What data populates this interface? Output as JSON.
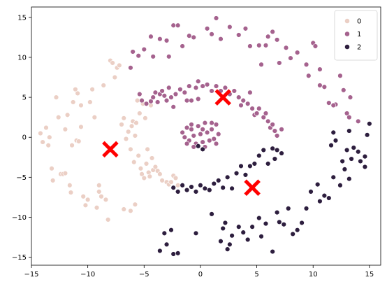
{
  "chart_data": {
    "type": "scatter",
    "title": "",
    "xlabel": "",
    "ylabel": "",
    "xlim": [
      -15,
      16
    ],
    "ylim": [
      -16,
      16.3
    ],
    "xticks": [
      -15,
      -10,
      -5,
      0,
      5,
      10,
      15
    ],
    "yticks": [
      -15,
      -10,
      -5,
      0,
      5,
      10,
      15
    ],
    "xtick_labels": [
      "−15",
      "−10",
      "−5",
      "0",
      "5",
      "10",
      "15"
    ],
    "ytick_labels": [
      "−15",
      "−10",
      "−5",
      "0",
      "5",
      "10",
      "15"
    ],
    "grid": false,
    "legend": {
      "position": "top-right",
      "entries": [
        "0",
        "1",
        "2"
      ]
    },
    "series": [
      {
        "name": "0",
        "color": "#ebcfc5",
        "points": [
          [
            -14.2,
            0.5
          ],
          [
            -14.0,
            -0.6
          ],
          [
            -13.7,
            1.2
          ],
          [
            -13.5,
            -1.0
          ],
          [
            -13.4,
            0.0
          ],
          [
            -13.2,
            -3.9
          ],
          [
            -13.1,
            -5.4
          ],
          [
            -12.8,
            5.0
          ],
          [
            -12.6,
            2.5
          ],
          [
            -12.4,
            -4.6
          ],
          [
            -12.2,
            -4.6
          ],
          [
            -12.0,
            1.0
          ],
          [
            -11.8,
            2.8
          ],
          [
            -11.6,
            -6.0
          ],
          [
            -11.5,
            -6.9
          ],
          [
            -11.3,
            4.4
          ],
          [
            -11.1,
            6.0
          ],
          [
            -11.0,
            -0.4
          ],
          [
            -10.9,
            5.5
          ],
          [
            -10.8,
            -0.5
          ],
          [
            -10.6,
            1.3
          ],
          [
            -10.4,
            -7.4
          ],
          [
            -10.2,
            -8.5
          ],
          [
            -10.0,
            -7.8
          ],
          [
            -9.8,
            4.4
          ],
          [
            -9.6,
            6.0
          ],
          [
            -9.4,
            2.5
          ],
          [
            -9.2,
            -8.8
          ],
          [
            -9.0,
            -6.8
          ],
          [
            -8.8,
            -7.4
          ],
          [
            -8.6,
            6.5
          ],
          [
            -8.4,
            -7.8
          ],
          [
            -8.2,
            -10.3
          ],
          [
            -8.0,
            9.6
          ],
          [
            -7.8,
            9.3
          ],
          [
            -7.6,
            7.5
          ],
          [
            -7.4,
            8.7
          ],
          [
            -7.2,
            9.0
          ],
          [
            -7.0,
            1.6
          ],
          [
            -6.8,
            2.4
          ],
          [
            -6.6,
            -0.2
          ],
          [
            -6.4,
            0.7
          ],
          [
            -6.2,
            -1.5
          ],
          [
            -6.1,
            1.4
          ],
          [
            -6.0,
            2.0
          ],
          [
            -5.9,
            -3.1
          ],
          [
            -5.8,
            0.2
          ],
          [
            -5.7,
            1.8
          ],
          [
            -5.6,
            4.6
          ],
          [
            -5.5,
            -2.3
          ],
          [
            -5.4,
            3.0
          ],
          [
            -5.3,
            -3.9
          ],
          [
            -5.2,
            -4.6
          ],
          [
            -5.1,
            4.2
          ],
          [
            -5.0,
            -5.1
          ],
          [
            -4.9,
            2.4
          ],
          [
            -4.8,
            -3.3
          ],
          [
            -4.7,
            -1.5
          ],
          [
            -4.6,
            -4.4
          ],
          [
            -4.5,
            -4.9
          ],
          [
            -4.4,
            4.0
          ],
          [
            -4.3,
            -2.6
          ],
          [
            -4.2,
            -4.1
          ],
          [
            -4.0,
            -3.7
          ],
          [
            -3.8,
            -4.2
          ],
          [
            -3.6,
            -4.6
          ],
          [
            -3.4,
            -5.4
          ],
          [
            -3.0,
            -5.6
          ],
          [
            -2.8,
            -5.9
          ],
          [
            -2.6,
            -5.6
          ],
          [
            -2.4,
            -4.8
          ],
          [
            -2.2,
            -5.1
          ],
          [
            -2.0,
            -6.0
          ],
          [
            -6.8,
            -9.0
          ],
          [
            -6.2,
            -9.2
          ],
          [
            -5.8,
            -8.4
          ],
          [
            -12.0,
            -4.5
          ],
          [
            -9.0,
            -6.0
          ],
          [
            -10.6,
            4.0
          ],
          [
            -11.4,
            -1.0
          ]
        ]
      },
      {
        "name": "1",
        "color": "#a5628e",
        "points": [
          [
            -6.2,
            8.7
          ],
          [
            -6.0,
            10.7
          ],
          [
            -5.5,
            10.2
          ],
          [
            -5.0,
            11.0
          ],
          [
            -4.4,
            12.6
          ],
          [
            -4.2,
            10.1
          ],
          [
            -3.6,
            12.3
          ],
          [
            -3.0,
            12.1
          ],
          [
            -2.8,
            10.1
          ],
          [
            -2.4,
            14.0
          ],
          [
            -2.0,
            14.0
          ],
          [
            -1.6,
            11.4
          ],
          [
            -1.0,
            12.7
          ],
          [
            -0.6,
            12.5
          ],
          [
            0.6,
            13.6
          ],
          [
            1.0,
            12.9
          ],
          [
            1.4,
            14.9
          ],
          [
            1.8,
            12.3
          ],
          [
            2.6,
            13.8
          ],
          [
            3.4,
            12.8
          ],
          [
            4.0,
            13.6
          ],
          [
            4.4,
            11.4
          ],
          [
            5.2,
            11.5
          ],
          [
            5.4,
            9.1
          ],
          [
            5.8,
            11.5
          ],
          [
            6.0,
            12.6
          ],
          [
            6.4,
            13.2
          ],
          [
            6.8,
            12.2
          ],
          [
            7.0,
            9.3
          ],
          [
            7.6,
            11.2
          ],
          [
            8.0,
            9.9
          ],
          [
            8.6,
            10.6
          ],
          [
            9.4,
            9.1
          ],
          [
            9.6,
            7.7
          ],
          [
            10.0,
            11.8
          ],
          [
            10.2,
            11.4
          ],
          [
            10.6,
            6.5
          ],
          [
            11.0,
            6.3
          ],
          [
            11.4,
            4.3
          ],
          [
            12.0,
            4.1
          ],
          [
            12.4,
            7.7
          ],
          [
            12.7,
            5.9
          ],
          [
            13.0,
            3.0
          ],
          [
            13.3,
            5.0
          ],
          [
            14.0,
            2.0
          ],
          [
            11.8,
            4.0
          ],
          [
            13.2,
            2.5
          ],
          [
            10.6,
            8.5
          ],
          [
            -5.2,
            4.6
          ],
          [
            -4.8,
            4.2
          ],
          [
            -4.4,
            4.5
          ],
          [
            -4.2,
            5.0
          ],
          [
            -4.0,
            5.6
          ],
          [
            -3.8,
            4.4
          ],
          [
            -3.6,
            5.4
          ],
          [
            -3.4,
            5.8
          ],
          [
            -3.2,
            5.2
          ],
          [
            -3.0,
            4.6
          ],
          [
            -2.8,
            6.2
          ],
          [
            -2.6,
            5.0
          ],
          [
            -2.4,
            3.8
          ],
          [
            -2.2,
            5.4
          ],
          [
            -1.8,
            6.0
          ],
          [
            -1.4,
            5.6
          ],
          [
            -1.2,
            4.6
          ],
          [
            -1.0,
            6.4
          ],
          [
            -0.8,
            4.6
          ],
          [
            -0.4,
            6.2
          ],
          [
            -0.2,
            7.0
          ],
          [
            0.2,
            6.4
          ],
          [
            0.6,
            6.6
          ],
          [
            1.0,
            5.8
          ],
          [
            1.4,
            6.4
          ],
          [
            1.8,
            5.8
          ],
          [
            2.2,
            6.2
          ],
          [
            2.6,
            5.4
          ],
          [
            3.0,
            5.8
          ],
          [
            3.4,
            5.0
          ],
          [
            3.6,
            4.0
          ],
          [
            3.8,
            4.6
          ],
          [
            4.2,
            4.2
          ],
          [
            4.4,
            5.6
          ],
          [
            4.6,
            3.6
          ],
          [
            4.8,
            2.8
          ],
          [
            5.0,
            3.0
          ],
          [
            5.2,
            3.6
          ],
          [
            5.6,
            2.5
          ],
          [
            5.8,
            3.0
          ],
          [
            6.0,
            2.0
          ],
          [
            6.2,
            1.2
          ],
          [
            6.4,
            1.6
          ],
          [
            6.6,
            0.8
          ],
          [
            6.8,
            0.2
          ],
          [
            7.2,
            1.0
          ],
          [
            -0.2,
            4.8
          ],
          [
            -5.4,
            5.4
          ],
          [
            -1.6,
            0.6
          ],
          [
            -1.4,
            0.0
          ],
          [
            -1.2,
            1.2
          ],
          [
            -1.0,
            -0.4
          ],
          [
            -0.8,
            1.6
          ],
          [
            -0.6,
            0.2
          ],
          [
            -0.4,
            -0.8
          ],
          [
            -0.2,
            1.4
          ],
          [
            0.0,
            0.4
          ],
          [
            0.2,
            -0.6
          ],
          [
            0.4,
            1.8
          ],
          [
            0.6,
            0.6
          ],
          [
            0.8,
            -0.4
          ],
          [
            1.0,
            1.0
          ],
          [
            1.2,
            -0.2
          ],
          [
            1.4,
            1.6
          ],
          [
            1.6,
            0.4
          ],
          [
            1.0,
            1.8
          ],
          [
            0.4,
            -1.2
          ],
          [
            -0.6,
            -1.2
          ],
          [
            0.2,
            1.0
          ],
          [
            -1.2,
            -0.8
          ],
          [
            1.4,
            -0.8
          ],
          [
            -0.8,
            1.0
          ]
        ]
      },
      {
        "name": "2",
        "color": "#2d1e3e",
        "points": [
          [
            -2.4,
            -6.3
          ],
          [
            -2.0,
            -6.8
          ],
          [
            -1.6,
            -6.0
          ],
          [
            -1.2,
            -6.6
          ],
          [
            -0.8,
            -6.2
          ],
          [
            -0.4,
            -6.8
          ],
          [
            0.0,
            -6.0
          ],
          [
            0.4,
            -6.4
          ],
          [
            0.8,
            -6.6
          ],
          [
            1.2,
            -5.8
          ],
          [
            1.6,
            -5.4
          ],
          [
            2.0,
            -6.3
          ],
          [
            2.4,
            -5.0
          ],
          [
            2.8,
            -6.4
          ],
          [
            3.2,
            -4.5
          ],
          [
            3.6,
            -3.6
          ],
          [
            4.0,
            -4.7
          ],
          [
            4.4,
            -3.6
          ],
          [
            4.8,
            -3.3
          ],
          [
            5.2,
            -2.3
          ],
          [
            5.6,
            -1.6
          ],
          [
            6.0,
            -3.3
          ],
          [
            6.4,
            -1.4
          ],
          [
            6.8,
            -1.6
          ],
          [
            7.2,
            -2.0
          ],
          [
            6.6,
            -2.7
          ],
          [
            -0.2,
            -1.1
          ],
          [
            0.2,
            -1.5
          ],
          [
            -2.4,
            -14.6
          ],
          [
            -2.0,
            -14.5
          ],
          [
            -3.6,
            -14.2
          ],
          [
            -3.2,
            -12.0
          ],
          [
            -3.0,
            -13.4
          ],
          [
            -2.6,
            -11.6
          ],
          [
            -0.4,
            -12.0
          ],
          [
            1.0,
            -9.6
          ],
          [
            1.8,
            -13.0
          ],
          [
            2.0,
            -11.4
          ],
          [
            2.2,
            -10.7
          ],
          [
            2.4,
            -14.0
          ],
          [
            2.6,
            -13.4
          ],
          [
            2.8,
            -12.3
          ],
          [
            3.4,
            -11.2
          ],
          [
            3.8,
            -11.9
          ],
          [
            4.2,
            -12.8
          ],
          [
            4.6,
            -11.2
          ],
          [
            5.2,
            -10.1
          ],
          [
            5.4,
            -12.4
          ],
          [
            5.8,
            -10.8
          ],
          [
            6.4,
            -14.3
          ],
          [
            6.8,
            -9.4
          ],
          [
            7.0,
            -10.6
          ],
          [
            7.4,
            -10.9
          ],
          [
            7.8,
            -8.9
          ],
          [
            8.2,
            -12.1
          ],
          [
            8.6,
            -11.6
          ],
          [
            9.0,
            -10.7
          ],
          [
            9.4,
            -8.9
          ],
          [
            9.8,
            -6.8
          ],
          [
            10.4,
            -5.9
          ],
          [
            10.6,
            -8.0
          ],
          [
            11.0,
            -7.3
          ],
          [
            11.4,
            -7.6
          ],
          [
            11.8,
            -5.0
          ],
          [
            12.4,
            -6.0
          ],
          [
            12.8,
            -4.0
          ],
          [
            13.2,
            -5.2
          ],
          [
            13.4,
            -2.7
          ],
          [
            14.0,
            -1.8
          ],
          [
            14.2,
            -3.0
          ],
          [
            14.6,
            -3.7
          ],
          [
            15.0,
            1.7
          ],
          [
            14.8,
            0.3
          ],
          [
            13.2,
            0.8
          ],
          [
            12.0,
            -0.4
          ],
          [
            11.6,
            -1.0
          ],
          [
            12.6,
            -3.0
          ],
          [
            13.0,
            -1.6
          ],
          [
            11.8,
            0.6
          ],
          [
            14.6,
            -2.4
          ],
          [
            13.6,
            -1.3
          ]
        ]
      }
    ],
    "centroids": {
      "marker": "x",
      "color": "#ff0000",
      "points": [
        [
          -8.0,
          -1.5
        ],
        [
          2.0,
          5.0
        ],
        [
          4.6,
          -6.3
        ]
      ]
    }
  }
}
